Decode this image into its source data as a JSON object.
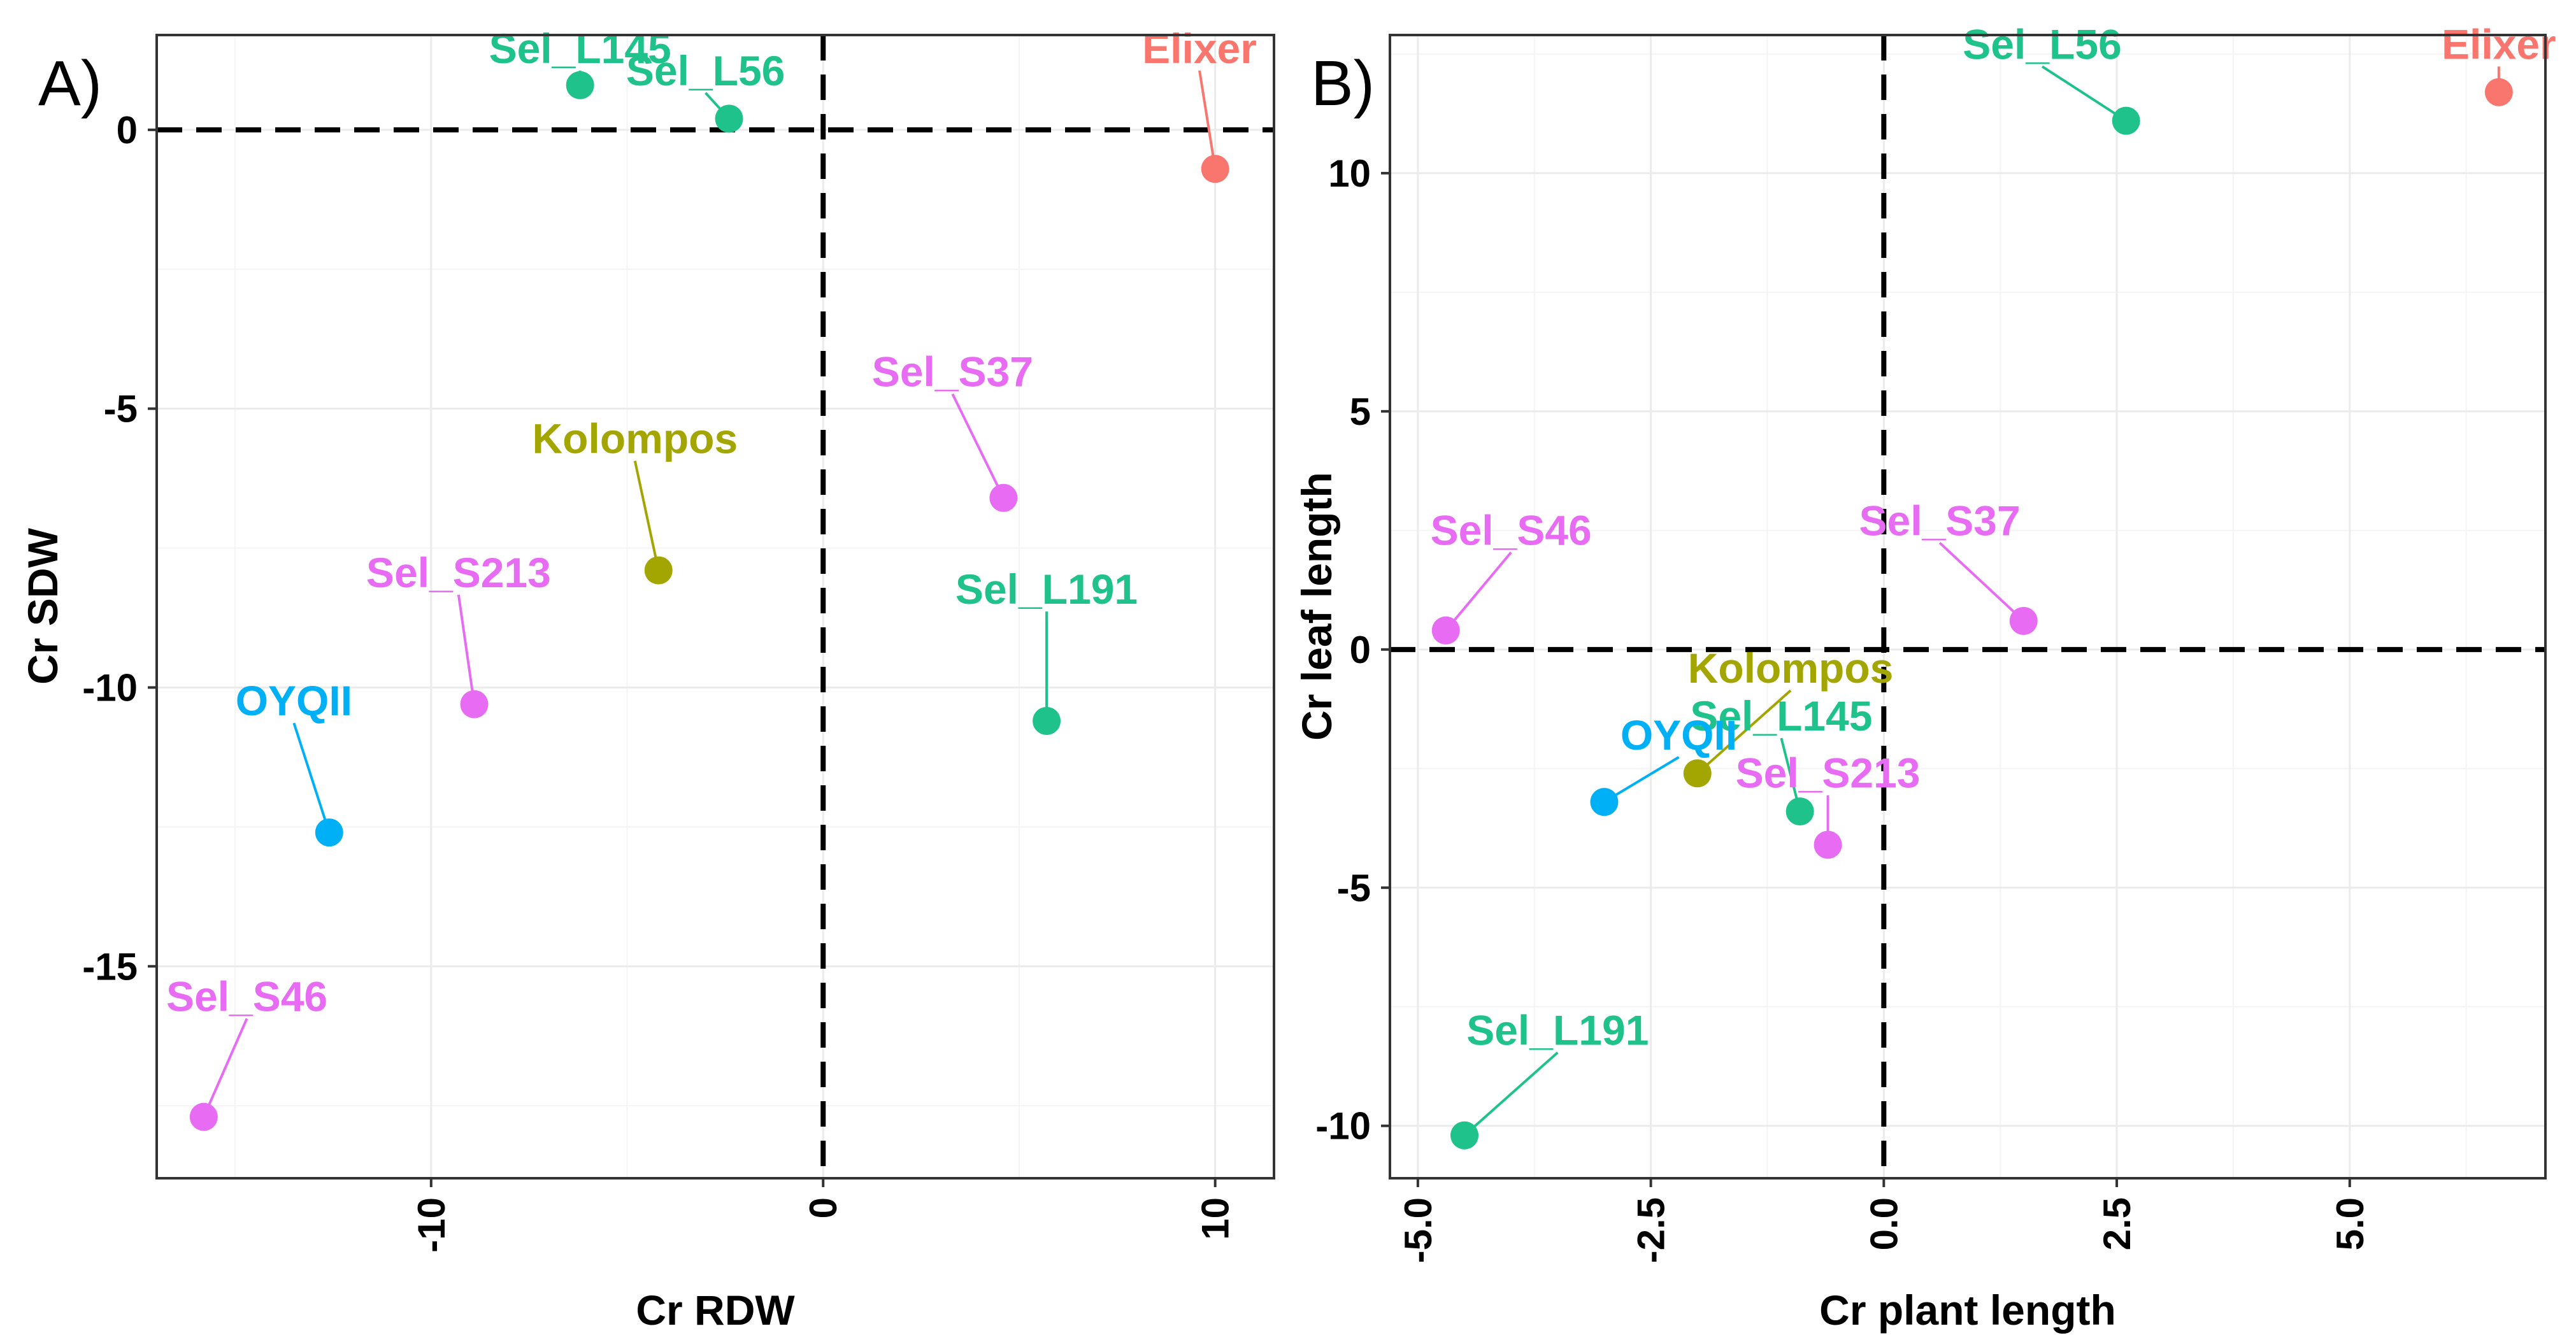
{
  "chart_data": [
    {
      "type": "scatter",
      "panel": "A)",
      "xlabel": "Cr RDW",
      "ylabel": "Cr  SDW",
      "xlim": [
        -17,
        11.5
      ],
      "ylim": [
        -18.8,
        1.7
      ],
      "xticks": [
        -10,
        0,
        10
      ],
      "yticks": [
        0,
        -5,
        -10,
        -15
      ],
      "xminor": [
        -15,
        -5,
        5
      ],
      "yminor": [
        -2.5,
        -7.5,
        -12.5,
        -17.5
      ],
      "refx": 0,
      "refy": 0,
      "grid": true,
      "points": [
        {
          "name": "Elixer",
          "x": 10.0,
          "y": -0.7,
          "color": "#F8766D",
          "lx": 9.6,
          "ly": 1.2
        },
        {
          "name": "Sel_L145",
          "x": -6.2,
          "y": 0.8,
          "color": "#1FC28A",
          "lx": -6.2,
          "ly": 1.2
        },
        {
          "name": "Sel_L56",
          "x": -2.4,
          "y": 0.2,
          "color": "#1FC28A",
          "lx": -3.0,
          "ly": 0.8
        },
        {
          "name": "Sel_S37",
          "x": 4.6,
          "y": -6.6,
          "color": "#E76BF3",
          "lx": 3.3,
          "ly": -4.6
        },
        {
          "name": "Kolompos",
          "x": -4.2,
          "y": -7.9,
          "color": "#A3A500",
          "lx": -4.8,
          "ly": -5.8
        },
        {
          "name": "Sel_L191",
          "x": 5.7,
          "y": -10.6,
          "color": "#1FC28A",
          "lx": 5.7,
          "ly": -8.5
        },
        {
          "name": "Sel_S213",
          "x": -8.9,
          "y": -10.3,
          "color": "#E76BF3",
          "lx": -9.3,
          "ly": -8.2
        },
        {
          "name": "OYQII",
          "x": -12.6,
          "y": -12.6,
          "color": "#00B0F6",
          "lx": -13.5,
          "ly": -10.5
        },
        {
          "name": "Sel_S46",
          "x": -15.8,
          "y": -17.7,
          "color": "#E76BF3",
          "lx": -14.7,
          "ly": -15.8
        }
      ]
    },
    {
      "type": "scatter",
      "panel": "B)",
      "xlabel": "Cr plant length",
      "ylabel": "Cr  leaf length",
      "xlim": [
        -5.3,
        7.1
      ],
      "ylim": [
        -11.1,
        12.9
      ],
      "xticks": [
        -5.0,
        -2.5,
        0.0,
        2.5,
        5.0
      ],
      "yticks": [
        10,
        5,
        0,
        -5,
        -10
      ],
      "xminor": [
        -3.75,
        -1.25,
        1.25,
        3.75,
        6.25
      ],
      "yminor": [
        12.5,
        7.5,
        2.5,
        -2.5,
        -7.5
      ],
      "refx": 0,
      "refy": 0,
      "grid": true,
      "points": [
        {
          "name": "Elixer",
          "x": 6.6,
          "y": 11.7,
          "color": "#F8766D",
          "lx": 6.6,
          "ly": 12.4
        },
        {
          "name": "Sel_L56",
          "x": 2.6,
          "y": 11.1,
          "color": "#1FC28A",
          "lx": 1.7,
          "ly": 12.4
        },
        {
          "name": "Sel_S37",
          "x": 1.5,
          "y": 0.6,
          "color": "#E76BF3",
          "lx": 0.6,
          "ly": 2.4
        },
        {
          "name": "Sel_S46",
          "x": -4.7,
          "y": 0.4,
          "color": "#E76BF3",
          "lx": -4.0,
          "ly": 2.2
        },
        {
          "name": "Kolompos",
          "x": -2.0,
          "y": -2.6,
          "color": "#A3A500",
          "lx": -1.0,
          "ly": -0.7
        },
        {
          "name": "Sel_L145",
          "x": -0.9,
          "y": -3.4,
          "color": "#1FC28A",
          "lx": -1.1,
          "ly": -1.7
        },
        {
          "name": "OYQII",
          "x": -3.0,
          "y": -3.2,
          "color": "#00B0F6",
          "lx": -2.2,
          "ly": -2.1
        },
        {
          "name": "Sel_S213",
          "x": -0.6,
          "y": -4.1,
          "color": "#E76BF3",
          "lx": -0.6,
          "ly": -2.9
        },
        {
          "name": "Sel_L191",
          "x": -4.5,
          "y": -10.2,
          "color": "#1FC28A",
          "lx": -3.5,
          "ly": -8.3
        }
      ]
    }
  ]
}
